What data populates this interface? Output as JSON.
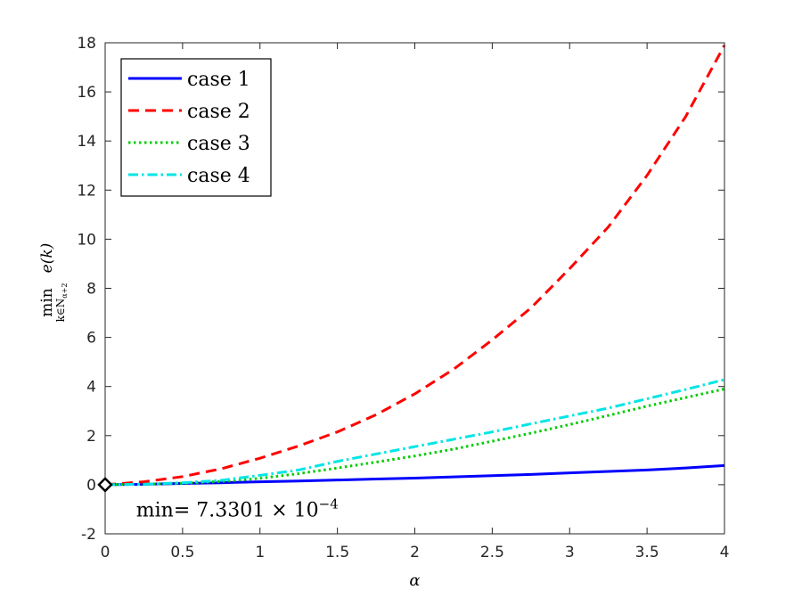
{
  "chart_data": {
    "type": "line",
    "xlabel": "α",
    "ylabel_main": "min",
    "ylabel_func": "e(k)",
    "ylabel_sub": "k∈N",
    "ylabel_subsub": "α+2",
    "xlim": [
      0,
      4
    ],
    "ylim": [
      -2,
      18
    ],
    "xticks": [
      0,
      0.5,
      1,
      1.5,
      2,
      2.5,
      3,
      3.5,
      4
    ],
    "xtick_labels": [
      "0",
      "0.5",
      "1",
      "1.5",
      "2",
      "2.5",
      "3",
      "3.5",
      "4"
    ],
    "yticks": [
      -2,
      0,
      2,
      4,
      6,
      8,
      10,
      12,
      14,
      16,
      18
    ],
    "ytick_labels": [
      "-2",
      "0",
      "2",
      "4",
      "6",
      "8",
      "10",
      "12",
      "14",
      "16",
      "18"
    ],
    "grid": false,
    "legend_position": "top-left",
    "x": [
      0,
      0.25,
      0.5,
      0.75,
      1,
      1.25,
      1.5,
      1.75,
      2,
      2.25,
      2.5,
      2.75,
      3,
      3.25,
      3.5,
      3.75,
      4
    ],
    "series": [
      {
        "name": "case 1",
        "color": "#0000ff",
        "dash": "solid",
        "values": [
          0.0007,
          0.02,
          0.05,
          0.08,
          0.12,
          0.15,
          0.19,
          0.23,
          0.27,
          0.32,
          0.37,
          0.42,
          0.48,
          0.54,
          0.6,
          0.68,
          0.78
        ]
      },
      {
        "name": "case 2",
        "color": "#ff0000",
        "dash": "dashed",
        "values": [
          0.0007,
          0.12,
          0.33,
          0.65,
          1.08,
          1.58,
          2.15,
          2.85,
          3.7,
          4.7,
          5.9,
          7.2,
          8.8,
          10.5,
          12.6,
          15.0,
          17.9
        ]
      },
      {
        "name": "case 3",
        "color": "#00cc00",
        "dash": "dotted",
        "values": [
          0.0007,
          0.02,
          0.06,
          0.13,
          0.26,
          0.45,
          0.68,
          0.92,
          1.17,
          1.45,
          1.77,
          2.1,
          2.45,
          2.82,
          3.2,
          3.55,
          3.9
        ]
      },
      {
        "name": "case 4",
        "color": "#00e5e5",
        "dash": "dashdot",
        "values": [
          0.0007,
          0.02,
          0.08,
          0.18,
          0.38,
          0.6,
          0.95,
          1.25,
          1.55,
          1.85,
          2.15,
          2.48,
          2.8,
          3.12,
          3.5,
          3.88,
          4.28
        ]
      }
    ],
    "marker": {
      "x": 0,
      "y": 0.00073301,
      "shape": "diamond"
    },
    "annotation": {
      "prefix": "min= 7.3301 × 10",
      "exponent": "−4",
      "x": 0.2,
      "y": -1.0
    }
  }
}
